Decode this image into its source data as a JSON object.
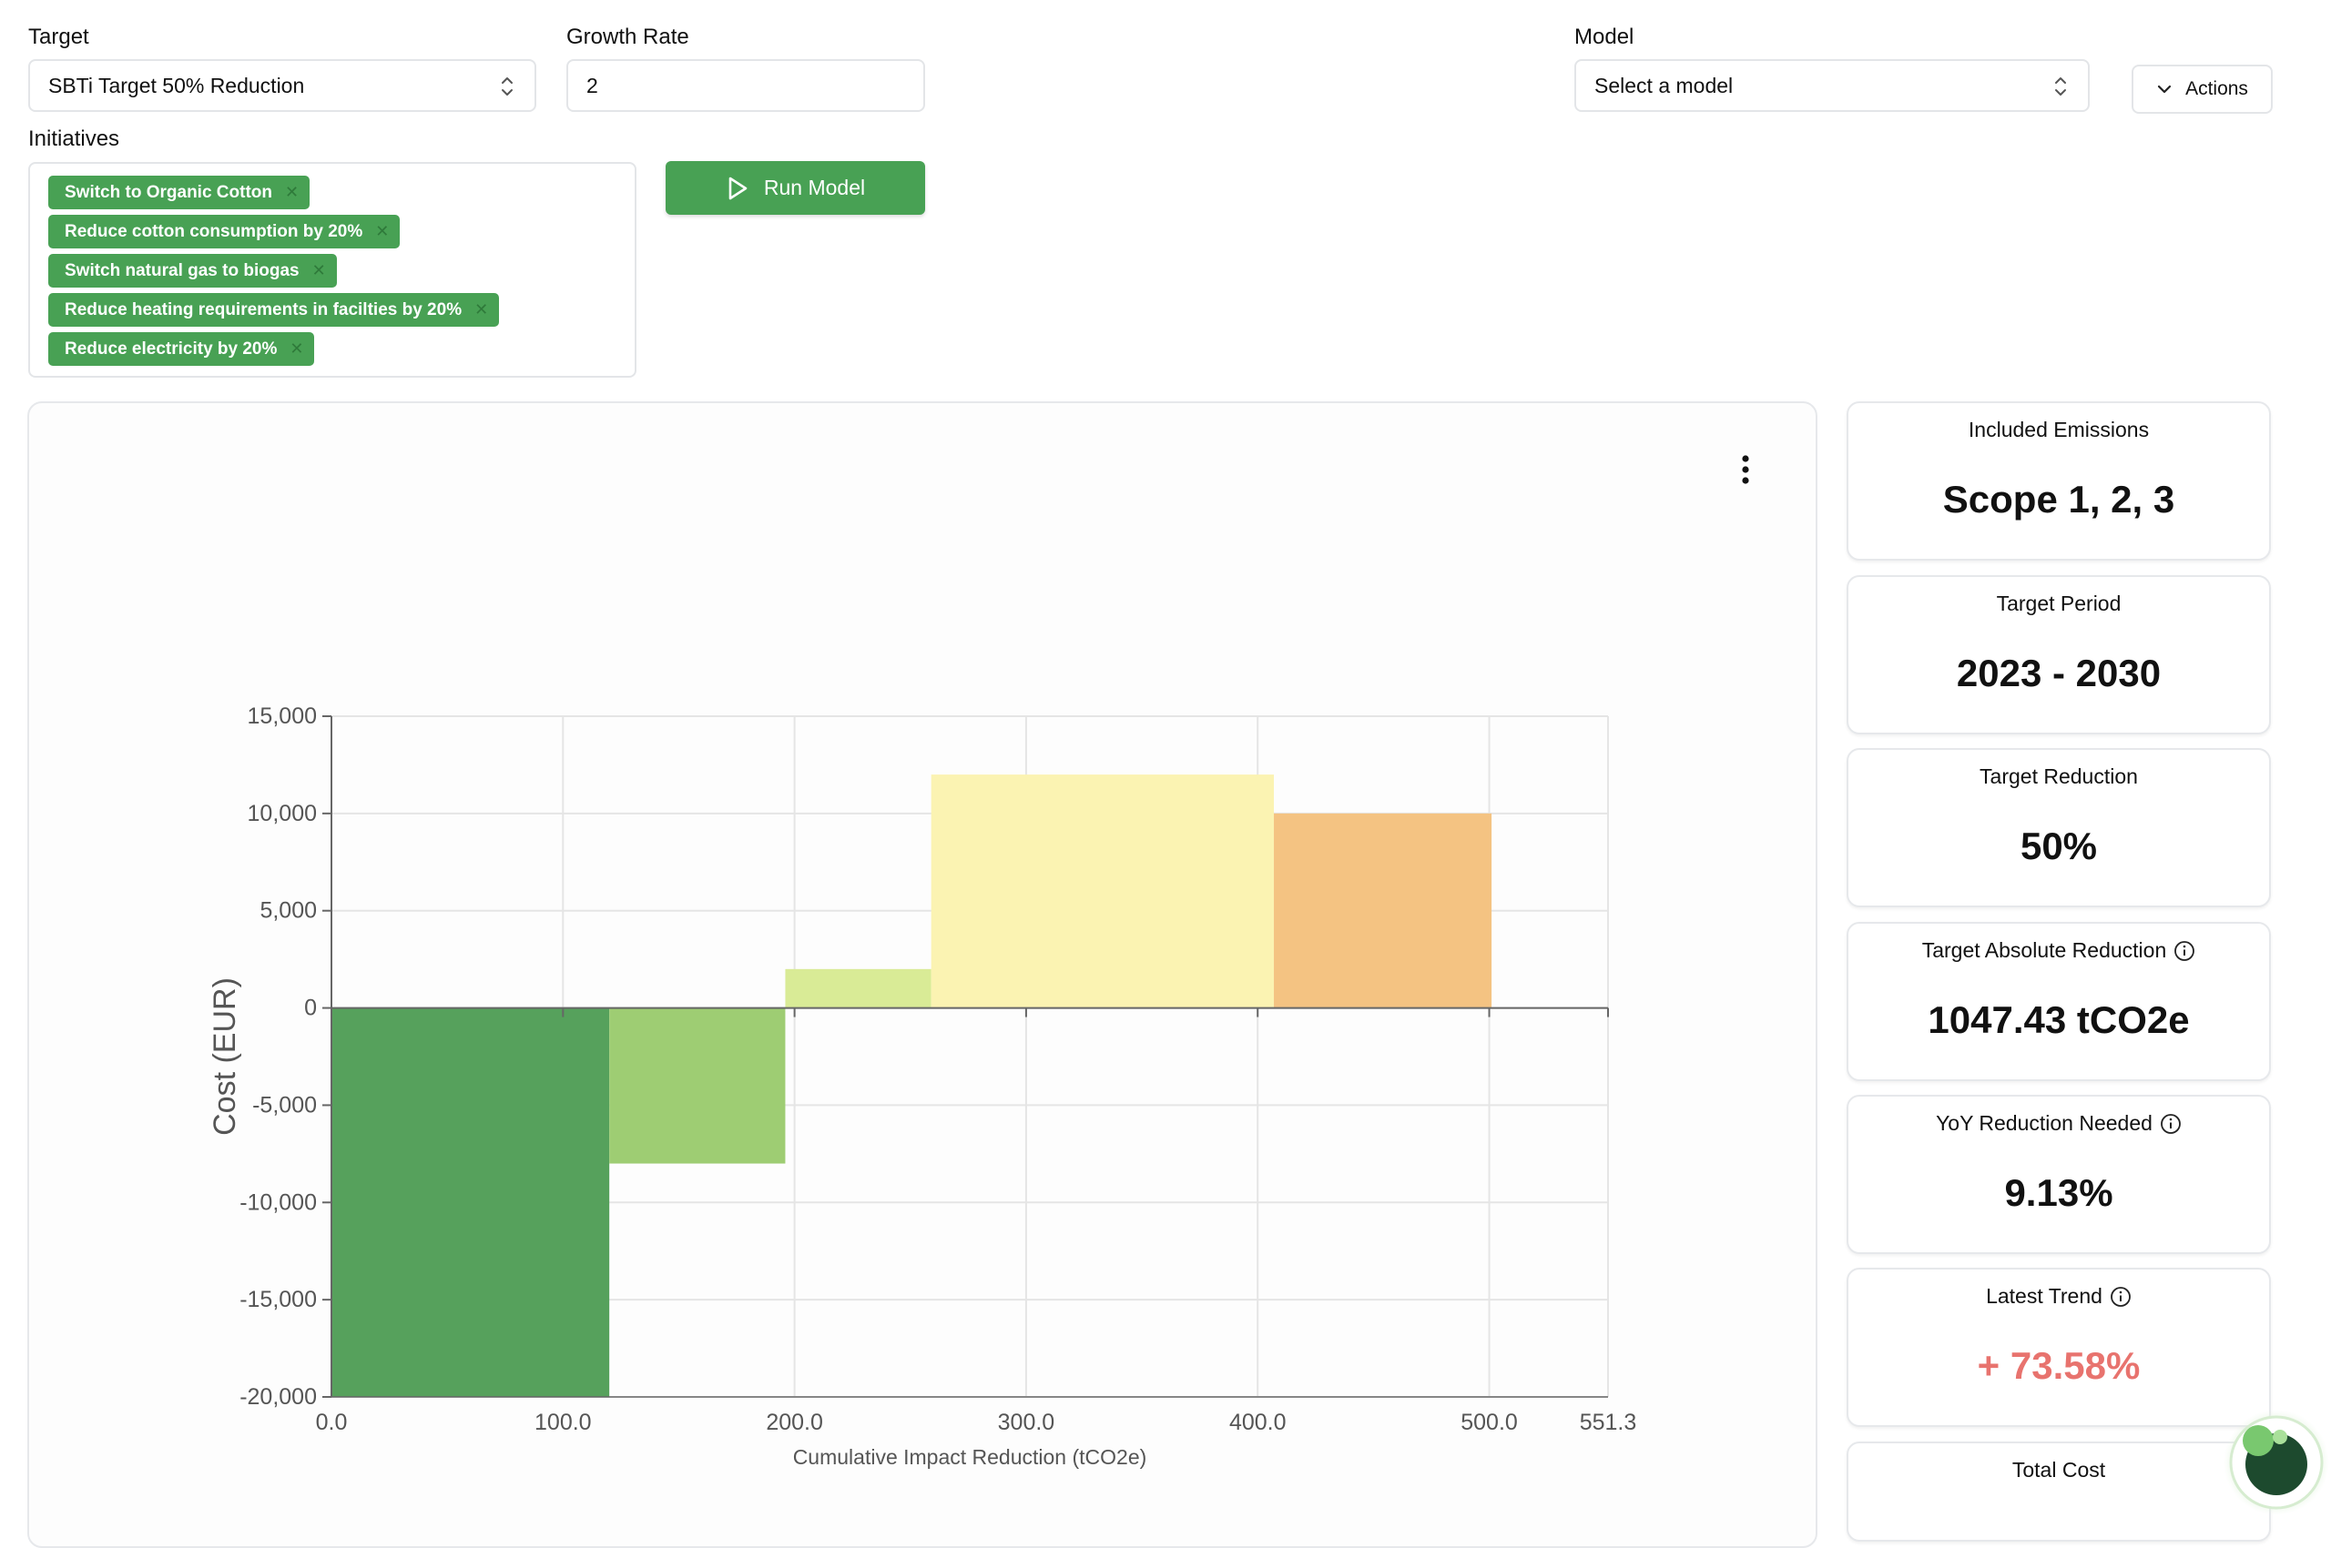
{
  "form": {
    "target_label": "Target",
    "target_value": "SBTi Target 50% Reduction",
    "growth_label": "Growth Rate",
    "growth_value": "2",
    "model_label": "Model",
    "model_placeholder": "Select a model",
    "actions_label": "Actions",
    "initiatives_label": "Initiatives",
    "initiatives": [
      "Switch to Organic Cotton",
      "Reduce cotton consumption by 20%",
      "Switch natural gas to biogas",
      "Reduce heating requirements in facilties by 20%",
      "Reduce electricity by 20%"
    ],
    "run_label": "Run Model"
  },
  "stats": [
    {
      "title": "Included Emissions",
      "value": "Scope 1, 2, 3",
      "info": false
    },
    {
      "title": "Target Period",
      "value": "2023 - 2030",
      "info": false
    },
    {
      "title": "Target Reduction",
      "value": "50%",
      "info": false
    },
    {
      "title": "Target Absolute Reduction",
      "value": "1047.43 tCO2e",
      "info": true
    },
    {
      "title": "YoY Reduction Needed",
      "value": "9.13%",
      "info": true
    },
    {
      "title": "Latest Trend",
      "value": "+ 73.58%",
      "info": true,
      "color": "#e8736e"
    },
    {
      "title": "Total Cost",
      "value": "",
      "info": false
    }
  ],
  "chart_data": {
    "type": "bar",
    "subtype": "marginal-abatement-cost-curve",
    "title": "",
    "xlabel": "Cumulative Impact Reduction (tCO2e)",
    "ylabel": "Cost (EUR)",
    "xlim": [
      0,
      551.3
    ],
    "ylim": [
      -20000,
      15000
    ],
    "x_ticks": [
      "0.0",
      "100.0",
      "200.0",
      "300.0",
      "400.0",
      "500.0",
      "551.3"
    ],
    "x_tick_values": [
      0,
      100,
      200,
      300,
      400,
      500,
      551.3
    ],
    "y_ticks": [
      "15,000",
      "10,000",
      "5,000",
      "0",
      "-5,000",
      "-10,000",
      "-15,000",
      "-20,000"
    ],
    "y_tick_values": [
      15000,
      10000,
      5000,
      0,
      -5000,
      -10000,
      -15000,
      -20000
    ],
    "grid": true,
    "bars": [
      {
        "x0": 0,
        "x1": 120,
        "value": -20000,
        "color": "#56a15c"
      },
      {
        "x0": 120,
        "x1": 196,
        "value": -8000,
        "color": "#9ecd73"
      },
      {
        "x0": 196,
        "x1": 259,
        "value": 2000,
        "color": "#d9eb96"
      },
      {
        "x0": 259,
        "x1": 407,
        "value": 12000,
        "color": "#fbf3b2"
      },
      {
        "x0": 407,
        "x1": 501,
        "value": 10000,
        "color": "#f4c382"
      }
    ]
  }
}
